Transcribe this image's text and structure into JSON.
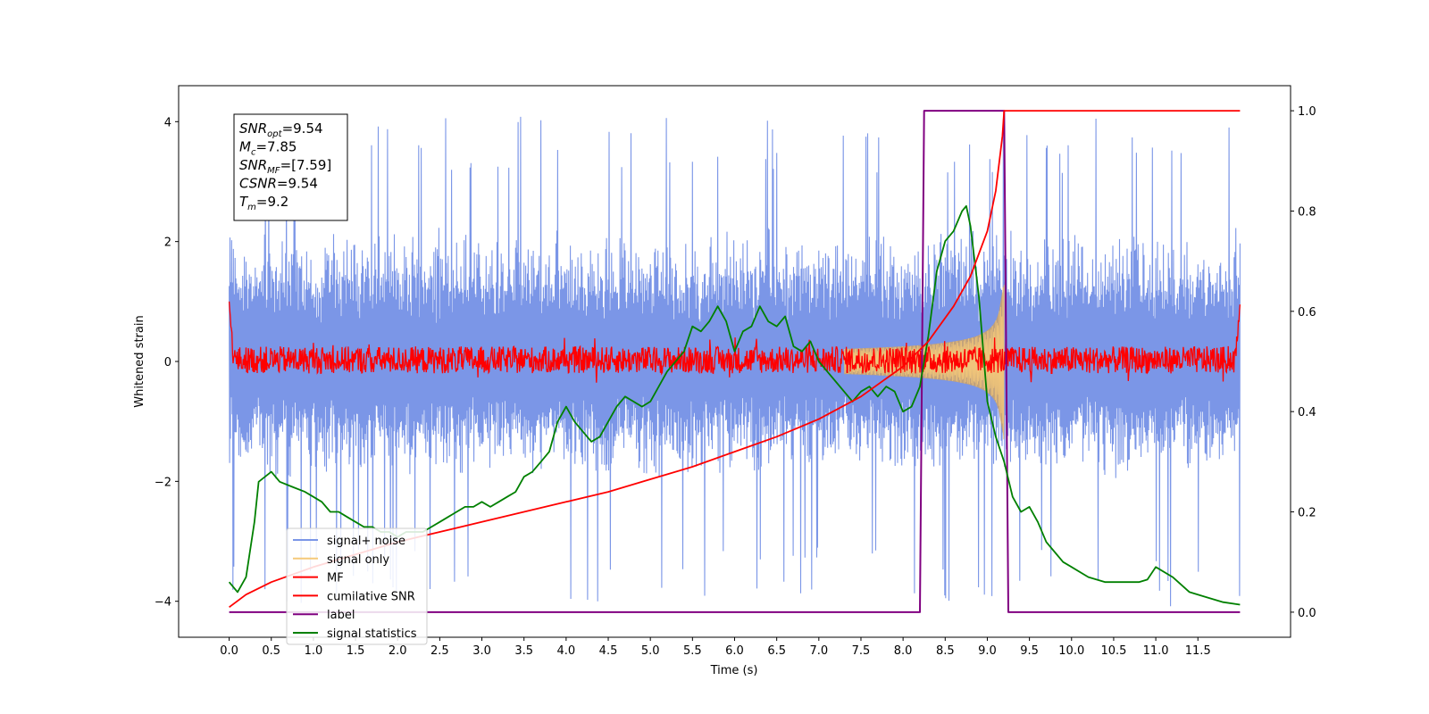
{
  "chart_data": {
    "type": "line",
    "xlabel": "Time (s)",
    "ylabel": "Whitened strain",
    "xlim": [
      -0.6,
      12.6
    ],
    "ylim": [
      -4.6,
      4.6
    ],
    "ylim_right": [
      -0.05,
      1.05
    ],
    "x_ticks": [
      "0.0",
      "0.5",
      "1.0",
      "1.5",
      "2.0",
      "2.5",
      "3.0",
      "3.5",
      "4.0",
      "4.5",
      "5.0",
      "5.5",
      "6.0",
      "6.5",
      "7.0",
      "7.5",
      "8.0",
      "8.5",
      "9.0",
      "9.5",
      "10.0",
      "10.5",
      "11.0",
      "11.5"
    ],
    "y_ticks_left": [
      "4",
      "2",
      "0",
      "−2",
      "−4"
    ],
    "y_ticks_right": [
      "1.0",
      "0.8",
      "0.6",
      "0.4",
      "0.2",
      "0.0"
    ],
    "info_box": [
      {
        "sym": "SNR",
        "sub": "opt",
        "val": "=9.54"
      },
      {
        "sym": "M",
        "sub": "c",
        "val": "=7.85"
      },
      {
        "sym": "SNR",
        "sub": "MF",
        "val": "=[7.59]"
      },
      {
        "sym": "CSNR",
        "sub": "",
        "val": "=9.54"
      },
      {
        "sym": "T",
        "sub": "m",
        "val": "=9.2"
      }
    ],
    "legend": {
      "placement": "lower-left",
      "entries": [
        {
          "label": "signal+ noise",
          "color": "#7b96e7"
        },
        {
          "label": "signal only",
          "color": "#f5c97a"
        },
        {
          "label": "MF",
          "color": "#ff0000"
        },
        {
          "label": "cumilative SNR",
          "color": "#ff0000"
        },
        {
          "label": "label",
          "color": "#800080"
        },
        {
          "label": "signal statistics",
          "color": "#008000"
        }
      ]
    },
    "series": [
      {
        "name": "signal+ noise",
        "axis": "left",
        "color": "#7b96e7",
        "kind": "noise",
        "x_range": [
          0,
          12
        ],
        "center": 0.0,
        "typical_range": [
          -2.0,
          2.3
        ],
        "extreme_range": [
          -4.1,
          4.15
        ]
      },
      {
        "name": "signal only",
        "axis": "left",
        "color": "#f5c97a",
        "kind": "chirp",
        "x_range": [
          7.3,
          9.2
        ],
        "peak_amplitude": 1.3
      },
      {
        "name": "MF",
        "axis": "left",
        "color": "#ff0000",
        "kind": "noise",
        "x_range": [
          0,
          12
        ],
        "center": 0.0,
        "typical_range": [
          -0.2,
          0.25
        ],
        "edge_values": [
          1.0,
          0.95
        ]
      },
      {
        "name": "cumilative SNR",
        "axis": "right",
        "color": "#ff0000",
        "x": [
          0,
          0.2,
          0.5,
          1,
          1.5,
          2,
          2.5,
          3,
          3.5,
          4,
          4.5,
          5,
          5.5,
          6,
          6.5,
          7,
          7.5,
          8,
          8.3,
          8.6,
          8.8,
          9,
          9.1,
          9.18,
          9.2,
          10,
          11,
          12
        ],
        "values": [
          0.01,
          0.035,
          0.06,
          0.09,
          0.115,
          0.14,
          0.16,
          0.18,
          0.2,
          0.22,
          0.24,
          0.265,
          0.29,
          0.32,
          0.35,
          0.385,
          0.43,
          0.49,
          0.54,
          0.61,
          0.67,
          0.76,
          0.84,
          0.95,
          1.0,
          1.0,
          1.0,
          1.0
        ]
      },
      {
        "name": "label",
        "axis": "right",
        "color": "#800080",
        "x": [
          0,
          8.2,
          8.25,
          9.2,
          9.25,
          12
        ],
        "values": [
          0,
          0,
          1,
          1,
          0,
          0
        ]
      },
      {
        "name": "signal statistics",
        "axis": "right",
        "color": "#008000",
        "x": [
          0,
          0.1,
          0.2,
          0.3,
          0.35,
          0.5,
          0.6,
          0.75,
          0.9,
          1.0,
          1.1,
          1.2,
          1.3,
          1.4,
          1.5,
          1.6,
          1.7,
          1.8,
          1.9,
          2.0,
          2.1,
          2.2,
          2.3,
          2.4,
          2.5,
          2.6,
          2.7,
          2.8,
          2.9,
          3.0,
          3.1,
          3.2,
          3.3,
          3.4,
          3.5,
          3.6,
          3.7,
          3.8,
          3.9,
          4.0,
          4.1,
          4.2,
          4.3,
          4.4,
          4.5,
          4.6,
          4.7,
          4.8,
          4.9,
          5.0,
          5.1,
          5.2,
          5.3,
          5.4,
          5.5,
          5.6,
          5.7,
          5.8,
          5.9,
          6.0,
          6.1,
          6.2,
          6.3,
          6.4,
          6.5,
          6.6,
          6.7,
          6.8,
          6.9,
          7.0,
          7.1,
          7.2,
          7.3,
          7.4,
          7.5,
          7.6,
          7.7,
          7.8,
          7.9,
          8.0,
          8.1,
          8.2,
          8.3,
          8.4,
          8.5,
          8.6,
          8.7,
          8.75,
          8.8,
          8.9,
          9.0,
          9.1,
          9.2,
          9.3,
          9.4,
          9.5,
          9.6,
          9.7,
          9.8,
          9.9,
          10.0,
          10.2,
          10.4,
          10.6,
          10.8,
          10.9,
          11.0,
          11.2,
          11.4,
          11.6,
          11.8,
          12.0
        ],
        "values": [
          0.06,
          0.04,
          0.07,
          0.18,
          0.26,
          0.28,
          0.26,
          0.25,
          0.24,
          0.23,
          0.22,
          0.2,
          0.2,
          0.19,
          0.18,
          0.17,
          0.17,
          0.16,
          0.16,
          0.15,
          0.16,
          0.16,
          0.16,
          0.17,
          0.18,
          0.19,
          0.2,
          0.21,
          0.21,
          0.22,
          0.21,
          0.22,
          0.23,
          0.24,
          0.27,
          0.28,
          0.3,
          0.32,
          0.38,
          0.41,
          0.38,
          0.36,
          0.34,
          0.35,
          0.38,
          0.41,
          0.43,
          0.42,
          0.41,
          0.42,
          0.45,
          0.48,
          0.5,
          0.52,
          0.57,
          0.56,
          0.58,
          0.61,
          0.58,
          0.52,
          0.56,
          0.57,
          0.61,
          0.58,
          0.57,
          0.59,
          0.53,
          0.52,
          0.54,
          0.5,
          0.48,
          0.46,
          0.44,
          0.42,
          0.44,
          0.45,
          0.43,
          0.45,
          0.44,
          0.4,
          0.41,
          0.45,
          0.55,
          0.68,
          0.74,
          0.76,
          0.8,
          0.81,
          0.77,
          0.63,
          0.42,
          0.35,
          0.3,
          0.23,
          0.2,
          0.21,
          0.18,
          0.14,
          0.12,
          0.1,
          0.09,
          0.07,
          0.06,
          0.06,
          0.06,
          0.065,
          0.09,
          0.07,
          0.04,
          0.03,
          0.02,
          0.015
        ]
      }
    ]
  }
}
